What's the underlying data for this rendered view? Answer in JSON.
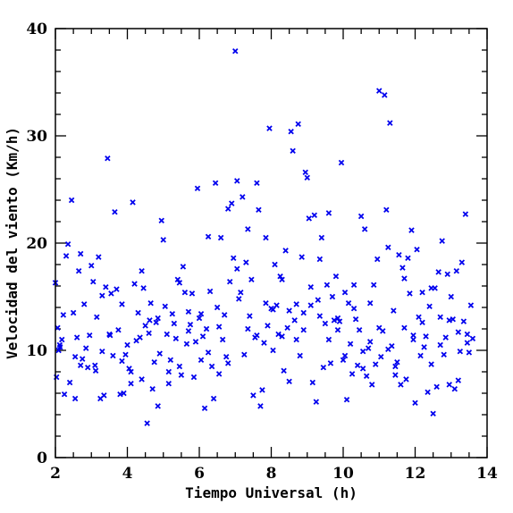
{
  "chart_data": {
    "type": "scatter",
    "title": "",
    "xlabel": "Tiempo Universal (h)",
    "ylabel": "Velocidad del viento (Km/h)",
    "xlim": [
      2,
      14
    ],
    "ylim": [
      0,
      40
    ],
    "x_ticks": [
      "2",
      "4",
      "6",
      "8",
      "10",
      "12",
      "14"
    ],
    "y_ticks": [
      "0",
      "10",
      "20",
      "30",
      "40"
    ],
    "grid": false,
    "marker": "x",
    "colors": {
      "series": "#0000ee",
      "axes": "#000000",
      "background": "#ffffff"
    },
    "series": [
      {
        "points": [
          [
            2.0,
            16.3
          ],
          [
            2.03,
            7.5
          ],
          [
            2.06,
            12.1
          ],
          [
            2.09,
            10.0
          ],
          [
            2.13,
            10.3
          ],
          [
            2.18,
            11.0
          ],
          [
            2.22,
            13.3
          ],
          [
            2.25,
            5.9
          ],
          [
            2.3,
            18.8
          ],
          [
            2.35,
            19.9
          ],
          [
            2.4,
            7.0
          ],
          [
            2.45,
            24.0
          ],
          [
            2.5,
            13.5
          ],
          [
            2.55,
            5.5
          ],
          [
            2.6,
            11.2
          ],
          [
            2.65,
            17.4
          ],
          [
            2.7,
            19.0
          ],
          [
            2.75,
            9.2
          ],
          [
            2.8,
            14.3
          ],
          [
            2.85,
            10.2
          ],
          [
            2.9,
            8.4
          ],
          [
            2.95,
            11.4
          ],
          [
            3.0,
            17.9
          ],
          [
            3.05,
            16.4
          ],
          [
            3.1,
            8.6
          ],
          [
            3.15,
            13.1
          ],
          [
            3.2,
            18.7
          ],
          [
            3.25,
            5.5
          ],
          [
            3.3,
            9.9
          ],
          [
            3.35,
            5.8
          ],
          [
            3.4,
            15.9
          ],
          [
            3.45,
            27.9
          ],
          [
            3.5,
            11.5
          ],
          [
            3.55,
            15.3
          ],
          [
            3.6,
            9.5
          ],
          [
            3.65,
            22.9
          ],
          [
            3.7,
            15.7
          ],
          [
            3.75,
            11.9
          ],
          [
            3.8,
            5.9
          ],
          [
            3.85,
            14.3
          ],
          [
            3.9,
            6.0
          ],
          [
            3.95,
            9.6
          ],
          [
            4.0,
            10.5
          ],
          [
            4.05,
            8.3
          ],
          [
            4.1,
            6.9
          ],
          [
            4.15,
            23.8
          ],
          [
            4.2,
            16.2
          ],
          [
            4.25,
            10.9
          ],
          [
            4.3,
            13.5
          ],
          [
            4.35,
            11.2
          ],
          [
            4.4,
            7.3
          ],
          [
            4.45,
            15.8
          ],
          [
            4.5,
            12.3
          ],
          [
            4.55,
            3.2
          ],
          [
            4.6,
            11.6
          ],
          [
            4.65,
            14.4
          ],
          [
            4.7,
            6.4
          ],
          [
            4.75,
            8.9
          ],
          [
            4.8,
            12.6
          ],
          [
            4.85,
            4.8
          ],
          [
            4.9,
            9.7
          ],
          [
            4.95,
            22.1
          ],
          [
            5.0,
            20.3
          ],
          [
            5.05,
            14.1
          ],
          [
            5.1,
            11.5
          ],
          [
            5.15,
            6.9
          ],
          [
            5.2,
            9.1
          ],
          [
            5.25,
            13.4
          ],
          [
            5.3,
            12.5
          ],
          [
            5.35,
            11.1
          ],
          [
            5.4,
            16.6
          ],
          [
            5.45,
            8.5
          ],
          [
            5.5,
            7.7
          ],
          [
            5.55,
            17.8
          ],
          [
            5.6,
            15.4
          ],
          [
            5.65,
            10.6
          ],
          [
            5.7,
            13.6
          ],
          [
            5.75,
            12.4
          ],
          [
            5.8,
            15.3
          ],
          [
            5.85,
            7.5
          ],
          [
            5.9,
            10.8
          ],
          [
            5.95,
            25.1
          ],
          [
            6.0,
            13.0
          ],
          [
            6.05,
            13.4
          ],
          [
            6.1,
            11.3
          ],
          [
            6.15,
            4.6
          ],
          [
            6.2,
            12.0
          ],
          [
            6.25,
            20.6
          ],
          [
            6.3,
            15.5
          ],
          [
            6.35,
            8.5
          ],
          [
            6.4,
            5.5
          ],
          [
            6.45,
            25.6
          ],
          [
            6.5,
            14.0
          ],
          [
            6.55,
            7.8
          ],
          [
            6.6,
            20.5
          ],
          [
            6.65,
            11.0
          ],
          [
            6.7,
            13.3
          ],
          [
            6.75,
            9.4
          ],
          [
            6.8,
            23.2
          ],
          [
            6.85,
            16.4
          ],
          [
            6.9,
            23.7
          ],
          [
            6.95,
            18.6
          ],
          [
            7.0,
            37.9
          ],
          [
            7.05,
            25.8
          ],
          [
            7.1,
            14.8
          ],
          [
            7.15,
            15.4
          ],
          [
            7.2,
            24.3
          ],
          [
            7.25,
            9.6
          ],
          [
            7.3,
            18.2
          ],
          [
            7.35,
            21.3
          ],
          [
            7.4,
            13.2
          ],
          [
            7.45,
            16.6
          ],
          [
            7.5,
            5.8
          ],
          [
            7.55,
            11.2
          ],
          [
            7.6,
            25.6
          ],
          [
            7.65,
            23.1
          ],
          [
            7.7,
            4.8
          ],
          [
            7.75,
            6.3
          ],
          [
            7.8,
            10.7
          ],
          [
            7.85,
            14.4
          ],
          [
            7.9,
            12.3
          ],
          [
            7.95,
            30.7
          ],
          [
            8.0,
            13.9
          ],
          [
            8.05,
            10.0
          ],
          [
            8.1,
            18.0
          ],
          [
            8.15,
            14.2
          ],
          [
            8.2,
            11.5
          ],
          [
            8.25,
            16.9
          ],
          [
            8.3,
            16.6
          ],
          [
            8.35,
            8.1
          ],
          [
            8.4,
            19.3
          ],
          [
            8.45,
            12.1
          ],
          [
            8.5,
            7.1
          ],
          [
            8.55,
            30.4
          ],
          [
            8.6,
            28.6
          ],
          [
            8.65,
            12.8
          ],
          [
            8.7,
            14.3
          ],
          [
            8.75,
            31.1
          ],
          [
            8.8,
            9.5
          ],
          [
            8.85,
            18.7
          ],
          [
            8.9,
            11.9
          ],
          [
            8.95,
            26.6
          ],
          [
            9.0,
            26.1
          ],
          [
            9.05,
            22.3
          ],
          [
            9.1,
            14.2
          ],
          [
            9.15,
            7.0
          ],
          [
            9.2,
            22.6
          ],
          [
            9.25,
            5.2
          ],
          [
            9.3,
            14.7
          ],
          [
            9.35,
            13.2
          ],
          [
            9.4,
            20.5
          ],
          [
            9.45,
            8.4
          ],
          [
            9.5,
            12.5
          ],
          [
            9.55,
            16.1
          ],
          [
            9.6,
            22.8
          ],
          [
            9.65,
            8.8
          ],
          [
            9.7,
            15.0
          ],
          [
            9.75,
            12.8
          ],
          [
            9.8,
            16.9
          ],
          [
            9.85,
            11.9
          ],
          [
            9.9,
            12.7
          ],
          [
            9.95,
            27.5
          ],
          [
            10.0,
            9.1
          ],
          [
            10.05,
            15.4
          ],
          [
            10.1,
            5.4
          ],
          [
            10.15,
            14.4
          ],
          [
            10.2,
            10.6
          ],
          [
            10.25,
            7.8
          ],
          [
            10.3,
            16.1
          ],
          [
            10.35,
            12.9
          ],
          [
            10.4,
            8.6
          ],
          [
            10.45,
            11.9
          ],
          [
            10.5,
            22.5
          ],
          [
            10.55,
            9.9
          ],
          [
            10.6,
            21.3
          ],
          [
            10.65,
            7.6
          ],
          [
            10.7,
            10.2
          ],
          [
            10.75,
            14.4
          ],
          [
            10.8,
            6.8
          ],
          [
            10.85,
            16.1
          ],
          [
            10.9,
            8.7
          ],
          [
            10.95,
            18.5
          ],
          [
            11.0,
            34.2
          ],
          [
            11.05,
            9.4
          ],
          [
            11.1,
            11.8
          ],
          [
            11.15,
            33.8
          ],
          [
            11.2,
            23.1
          ],
          [
            11.25,
            19.6
          ],
          [
            11.3,
            31.2
          ],
          [
            11.35,
            10.4
          ],
          [
            11.4,
            13.7
          ],
          [
            11.45,
            7.7
          ],
          [
            11.5,
            8.9
          ],
          [
            11.55,
            18.9
          ],
          [
            11.6,
            6.8
          ],
          [
            11.65,
            17.7
          ],
          [
            11.7,
            12.1
          ],
          [
            11.75,
            7.3
          ],
          [
            11.8,
            18.6
          ],
          [
            11.85,
            15.3
          ],
          [
            11.9,
            21.2
          ],
          [
            11.95,
            11.4
          ],
          [
            12.0,
            5.1
          ],
          [
            12.05,
            19.4
          ],
          [
            12.1,
            13.1
          ],
          [
            12.15,
            9.5
          ],
          [
            12.2,
            15.4
          ],
          [
            12.25,
            10.3
          ],
          [
            12.3,
            11.3
          ],
          [
            12.35,
            6.1
          ],
          [
            12.4,
            14.1
          ],
          [
            12.45,
            8.7
          ],
          [
            12.5,
            4.1
          ],
          [
            12.55,
            15.8
          ],
          [
            12.6,
            6.6
          ],
          [
            12.65,
            17.3
          ],
          [
            12.7,
            13.1
          ],
          [
            12.75,
            20.2
          ],
          [
            12.8,
            9.6
          ],
          [
            12.85,
            11.2
          ],
          [
            12.9,
            17.1
          ],
          [
            12.95,
            6.8
          ],
          [
            13.0,
            15.0
          ],
          [
            13.05,
            12.9
          ],
          [
            13.1,
            6.4
          ],
          [
            13.15,
            17.4
          ],
          [
            13.2,
            7.2
          ],
          [
            13.25,
            9.9
          ],
          [
            13.3,
            18.2
          ],
          [
            13.35,
            12.7
          ],
          [
            13.4,
            22.7
          ],
          [
            13.45,
            10.7
          ],
          [
            13.5,
            9.8
          ],
          [
            13.55,
            14.2
          ],
          [
            13.6,
            11.1
          ],
          [
            2.12,
            10.5
          ],
          [
            2.55,
            9.4
          ],
          [
            2.7,
            8.6
          ],
          [
            3.12,
            8.1
          ],
          [
            3.3,
            15.1
          ],
          [
            3.52,
            11.4
          ],
          [
            3.85,
            9.0
          ],
          [
            4.1,
            8.0
          ],
          [
            4.4,
            17.4
          ],
          [
            4.62,
            12.8
          ],
          [
            4.85,
            13.0
          ],
          [
            5.15,
            8.0
          ],
          [
            5.45,
            16.3
          ],
          [
            5.7,
            11.8
          ],
          [
            6.05,
            9.1
          ],
          [
            6.25,
            9.8
          ],
          [
            6.55,
            12.2
          ],
          [
            6.8,
            8.8
          ],
          [
            7.05,
            17.6
          ],
          [
            7.35,
            12.0
          ],
          [
            7.6,
            11.4
          ],
          [
            7.85,
            20.5
          ],
          [
            8.05,
            13.8
          ],
          [
            8.3,
            11.3
          ],
          [
            8.5,
            13.7
          ],
          [
            8.7,
            11.0
          ],
          [
            8.9,
            13.5
          ],
          [
            9.1,
            15.9
          ],
          [
            9.35,
            18.5
          ],
          [
            9.6,
            11.0
          ],
          [
            9.85,
            13.0
          ],
          [
            10.05,
            9.5
          ],
          [
            10.3,
            13.9
          ],
          [
            10.55,
            8.3
          ],
          [
            10.75,
            10.8
          ],
          [
            11.0,
            12.1
          ],
          [
            11.25,
            10.1
          ],
          [
            11.45,
            8.5
          ],
          [
            11.7,
            16.7
          ],
          [
            11.95,
            11.0
          ],
          [
            12.2,
            12.6
          ],
          [
            12.45,
            15.8
          ],
          [
            12.7,
            10.5
          ],
          [
            12.95,
            12.8
          ],
          [
            13.2,
            11.7
          ],
          [
            13.45,
            11.5
          ]
        ]
      }
    ]
  }
}
